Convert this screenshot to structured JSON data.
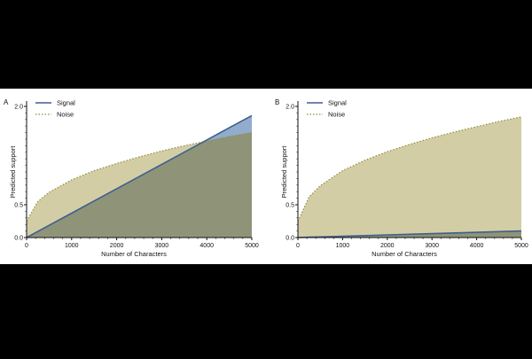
{
  "colors": {
    "background_band": "#000000",
    "panel": "#ffffff",
    "signal_line": "#3d5f8f",
    "signal_fill": "#7f9dc4",
    "noise_line": "#8f8f3a",
    "noise_fill": "#d3cda6",
    "overlap_fill": "#8f9478",
    "axis": "#111111"
  },
  "chart_data": [
    {
      "type": "area",
      "panel_label": "A",
      "xlabel": "Number of Characters",
      "ylabel": "Predicted support",
      "xlim": [
        0,
        5000
      ],
      "ylim": [
        0,
        2.0
      ],
      "xticks": [
        "0",
        "1000",
        "2000",
        "3000",
        "4000",
        "5000"
      ],
      "yticks": [
        {
          "value": 0,
          "label": "0.0"
        },
        {
          "value": 0.5,
          "label": "0.5"
        },
        {
          "value": 2.0,
          "label": "2.0"
        }
      ],
      "grid": false,
      "legend": "top-left",
      "x": [
        0,
        250,
        500,
        1000,
        1500,
        2000,
        2500,
        3000,
        3500,
        4000,
        4500,
        5000
      ],
      "series": [
        {
          "name": "Signal",
          "style": "solid",
          "values": [
            0.0,
            0.093,
            0.186,
            0.372,
            0.558,
            0.744,
            0.93,
            1.116,
            1.302,
            1.488,
            1.674,
            1.86
          ]
        },
        {
          "name": "Noise",
          "style": "dotted",
          "values": [
            0.25,
            0.55,
            0.69,
            0.88,
            1.02,
            1.13,
            1.23,
            1.32,
            1.4,
            1.47,
            1.54,
            1.6
          ]
        }
      ]
    },
    {
      "type": "area",
      "panel_label": "B",
      "xlabel": "Number of Characters",
      "ylabel": "Predicted support",
      "xlim": [
        0,
        5000
      ],
      "ylim": [
        0,
        2.0
      ],
      "xticks": [
        "0",
        "1000",
        "2000",
        "3000",
        "4000",
        "5000"
      ],
      "yticks": [
        {
          "value": 0,
          "label": "0.0"
        },
        {
          "value": 0.5,
          "label": "0.5"
        },
        {
          "value": 2.0,
          "label": "2.0"
        }
      ],
      "grid": false,
      "legend": "top-left",
      "x": [
        0,
        250,
        500,
        1000,
        1500,
        2000,
        2500,
        3000,
        3500,
        4000,
        4500,
        5000
      ],
      "series": [
        {
          "name": "Signal",
          "style": "solid",
          "values": [
            0.0,
            0.005,
            0.01,
            0.02,
            0.03,
            0.04,
            0.05,
            0.06,
            0.07,
            0.08,
            0.09,
            0.1
          ]
        },
        {
          "name": "Noise",
          "style": "dotted",
          "values": [
            0.25,
            0.62,
            0.79,
            1.02,
            1.18,
            1.31,
            1.42,
            1.52,
            1.61,
            1.69,
            1.77,
            1.84
          ]
        }
      ]
    }
  ]
}
